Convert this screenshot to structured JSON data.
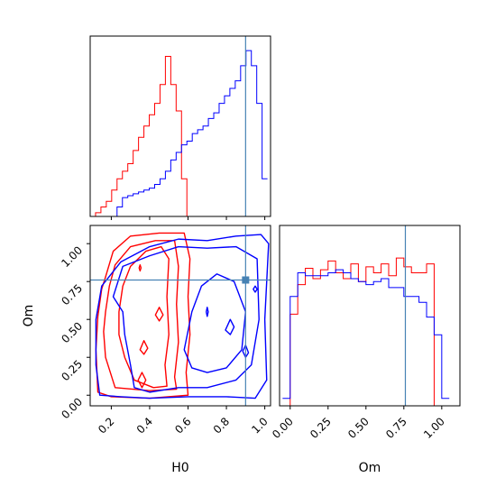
{
  "chart_data": [
    {
      "panel": "H0 marginal",
      "type": "histogram",
      "x": "H0",
      "xlim": [
        0.09,
        1.03
      ],
      "xticks": [
        0.2,
        0.4,
        0.6,
        0.8,
        1.0
      ],
      "bins": [
        0.09,
        0.118,
        0.146,
        0.174,
        0.202,
        0.23,
        0.258,
        0.286,
        0.314,
        0.342,
        0.37,
        0.398,
        0.426,
        0.454,
        0.482,
        0.51,
        0.538,
        0.566,
        0.594,
        0.622,
        0.65,
        0.678,
        0.706,
        0.734,
        0.762,
        0.79,
        0.818,
        0.846,
        0.874,
        0.902,
        0.93,
        0.958,
        0.986,
        1.014
      ],
      "series": [
        {
          "color": "#ff0000",
          "values": [
            0,
            0.02,
            0.05,
            0.08,
            0.14,
            0.2,
            0.24,
            0.28,
            0.35,
            0.42,
            0.48,
            0.54,
            0.6,
            0.7,
            0.85,
            0.7,
            0.56,
            0.2,
            0,
            0,
            0,
            0,
            0,
            0,
            0,
            0,
            0,
            0,
            0,
            0,
            0,
            0,
            0
          ]
        },
        {
          "color": "#0000ff",
          "values": [
            0,
            0,
            0,
            0,
            0,
            0.05,
            0.1,
            0.11,
            0.12,
            0.13,
            0.14,
            0.15,
            0.17,
            0.2,
            0.24,
            0.3,
            0.34,
            0.38,
            0.4,
            0.44,
            0.46,
            0.48,
            0.52,
            0.55,
            0.6,
            0.64,
            0.68,
            0.72,
            0.8,
            0.88,
            0.8,
            0.6,
            0.2
          ]
        }
      ],
      "truth_line": 0.9
    },
    {
      "panel": "Om marginal",
      "type": "histogram",
      "x": "Om",
      "xlim": [
        -0.07,
        1.12
      ],
      "xticks": [
        0.0,
        0.25,
        0.5,
        0.75,
        1.0
      ],
      "ytick_labels": [
        "0.00",
        "0.25",
        "0.50",
        "0.75",
        "1.00"
      ],
      "bins": [
        -0.05,
        0.0,
        0.05,
        0.1,
        0.15,
        0.2,
        0.25,
        0.3,
        0.35,
        0.4,
        0.45,
        0.5,
        0.55,
        0.6,
        0.65,
        0.7,
        0.75,
        0.8,
        0.85,
        0.9,
        0.95,
        1.0,
        1.05
      ],
      "series": [
        {
          "color": "#ff0000",
          "values": [
            0,
            0.62,
            0.82,
            0.93,
            0.86,
            0.92,
            0.98,
            0.9,
            0.86,
            0.96,
            0.84,
            0.94,
            0.9,
            0.96,
            0.88,
            1.0,
            0.94,
            0.9,
            0.9,
            0.96,
            0,
            0
          ]
        },
        {
          "color": "#0000ff",
          "values": [
            0.05,
            0.74,
            0.9,
            0.88,
            0.88,
            0.88,
            0.9,
            0.92,
            0.9,
            0.86,
            0.84,
            0.82,
            0.84,
            0.86,
            0.8,
            0.8,
            0.74,
            0.74,
            0.7,
            0.6,
            0.48,
            0.05
          ]
        }
      ],
      "truth_line": 0.76
    },
    {
      "panel": "H0 vs Om joint",
      "type": "contour",
      "xlabel": "H0",
      "ylabel": "Om",
      "xlim": [
        0.09,
        1.03
      ],
      "ylim": [
        -0.07,
        1.12
      ],
      "xtick_labels": [
        "0.2",
        "0.4",
        "0.6",
        "0.8",
        "1.0"
      ],
      "xticks": [
        0.2,
        0.4,
        0.6,
        0.8,
        1.0
      ],
      "yticks": [
        0.0,
        0.25,
        0.5,
        0.75,
        1.0
      ],
      "truth_point": [
        0.9,
        0.76
      ],
      "series": [
        {
          "color": "#ff0000",
          "contours": [
            [
              [
                0.13,
                0.52
              ],
              [
                0.15,
                0.7
              ],
              [
                0.17,
                0.78
              ],
              [
                0.21,
                0.95
              ],
              [
                0.3,
                1.05
              ],
              [
                0.45,
                1.07
              ],
              [
                0.58,
                1.07
              ],
              [
                0.61,
                0.9
              ],
              [
                0.6,
                0.65
              ],
              [
                0.61,
                0.4
              ],
              [
                0.59,
                0.15
              ],
              [
                0.6,
                0
              ],
              [
                0.4,
                -0.02
              ],
              [
                0.2,
                -0.01
              ],
              [
                0.13,
                0.02
              ],
              [
                0.12,
                0.3
              ]
            ],
            [
              [
                0.17,
                0.55
              ],
              [
                0.19,
                0.72
              ],
              [
                0.22,
                0.86
              ],
              [
                0.3,
                0.98
              ],
              [
                0.43,
                1.02
              ],
              [
                0.53,
                1.02
              ],
              [
                0.55,
                0.85
              ],
              [
                0.54,
                0.6
              ],
              [
                0.55,
                0.35
              ],
              [
                0.53,
                0.12
              ],
              [
                0.54,
                0.04
              ],
              [
                0.4,
                0.03
              ],
              [
                0.22,
                0.05
              ],
              [
                0.17,
                0.25
              ],
              [
                0.16,
                0.42
              ]
            ],
            [
              [
                0.24,
                0.55
              ],
              [
                0.26,
                0.72
              ],
              [
                0.3,
                0.85
              ],
              [
                0.38,
                0.95
              ],
              [
                0.46,
                0.98
              ],
              [
                0.5,
                0.9
              ],
              [
                0.49,
                0.65
              ],
              [
                0.5,
                0.4
              ],
              [
                0.48,
                0.2
              ],
              [
                0.49,
                0.06
              ],
              [
                0.42,
                0.05
              ],
              [
                0.32,
                0.1
              ],
              [
                0.27,
                0.25
              ],
              [
                0.24,
                0.4
              ]
            ],
            [
              [
                0.35,
                0.3
              ],
              [
                0.37,
                0.36
              ],
              [
                0.39,
                0.31
              ],
              [
                0.37,
                0.27
              ]
            ],
            [
              [
                0.34,
                0.1
              ],
              [
                0.36,
                0.15
              ],
              [
                0.38,
                0.1
              ],
              [
                0.36,
                0.05
              ]
            ],
            [
              [
                0.43,
                0.53
              ],
              [
                0.45,
                0.58
              ],
              [
                0.47,
                0.53
              ],
              [
                0.45,
                0.49
              ]
            ],
            [
              [
                0.345,
                0.84
              ],
              [
                0.35,
                0.86
              ],
              [
                0.355,
                0.84
              ],
              [
                0.35,
                0.82
              ]
            ]
          ]
        },
        {
          "color": "#0000ff",
          "contours": [
            [
              [
                0.12,
                0.5
              ],
              [
                0.15,
                0.72
              ],
              [
                0.25,
                0.88
              ],
              [
                0.4,
                0.98
              ],
              [
                0.55,
                1.03
              ],
              [
                0.7,
                1.02
              ],
              [
                0.85,
                1.05
              ],
              [
                0.98,
                1.06
              ],
              [
                1.02,
                1.0
              ],
              [
                1.0,
                0.5
              ],
              [
                1.01,
                0.1
              ],
              [
                0.95,
                -0.02
              ],
              [
                0.8,
                -0.01
              ],
              [
                0.6,
                -0.01
              ],
              [
                0.4,
                -0.02
              ],
              [
                0.25,
                -0.01
              ],
              [
                0.14,
                0.0
              ],
              [
                0.12,
                0.2
              ]
            ],
            [
              [
                0.21,
                0.65
              ],
              [
                0.26,
                0.85
              ],
              [
                0.4,
                0.92
              ],
              [
                0.55,
                0.98
              ],
              [
                0.7,
                0.97
              ],
              [
                0.85,
                0.98
              ],
              [
                0.96,
                0.9
              ],
              [
                0.97,
                0.5
              ],
              [
                0.93,
                0.2
              ],
              [
                0.85,
                0.1
              ],
              [
                0.7,
                0.05
              ],
              [
                0.55,
                0.05
              ],
              [
                0.4,
                0.02
              ],
              [
                0.32,
                0.05
              ],
              [
                0.3,
                0.2
              ],
              [
                0.27,
                0.4
              ],
              [
                0.26,
                0.55
              ]
            ],
            [
              [
                0.58,
                0.3
              ],
              [
                0.62,
                0.55
              ],
              [
                0.67,
                0.72
              ],
              [
                0.75,
                0.8
              ],
              [
                0.84,
                0.75
              ],
              [
                0.9,
                0.55
              ],
              [
                0.88,
                0.3
              ],
              [
                0.8,
                0.18
              ],
              [
                0.7,
                0.15
              ],
              [
                0.62,
                0.18
              ]
            ],
            [
              [
                0.795,
                0.43
              ],
              [
                0.82,
                0.5
              ],
              [
                0.84,
                0.45
              ],
              [
                0.82,
                0.4
              ]
            ],
            [
              [
                0.695,
                0.55
              ],
              [
                0.7,
                0.58
              ],
              [
                0.705,
                0.55
              ],
              [
                0.7,
                0.52
              ]
            ],
            [
              [
                0.885,
                0.29
              ],
              [
                0.9,
                0.33
              ],
              [
                0.915,
                0.28
              ],
              [
                0.9,
                0.25
              ]
            ],
            [
              [
                0.94,
                0.7
              ],
              [
                0.95,
                0.72
              ],
              [
                0.96,
                0.7
              ],
              [
                0.95,
                0.68
              ]
            ]
          ]
        }
      ]
    }
  ]
}
